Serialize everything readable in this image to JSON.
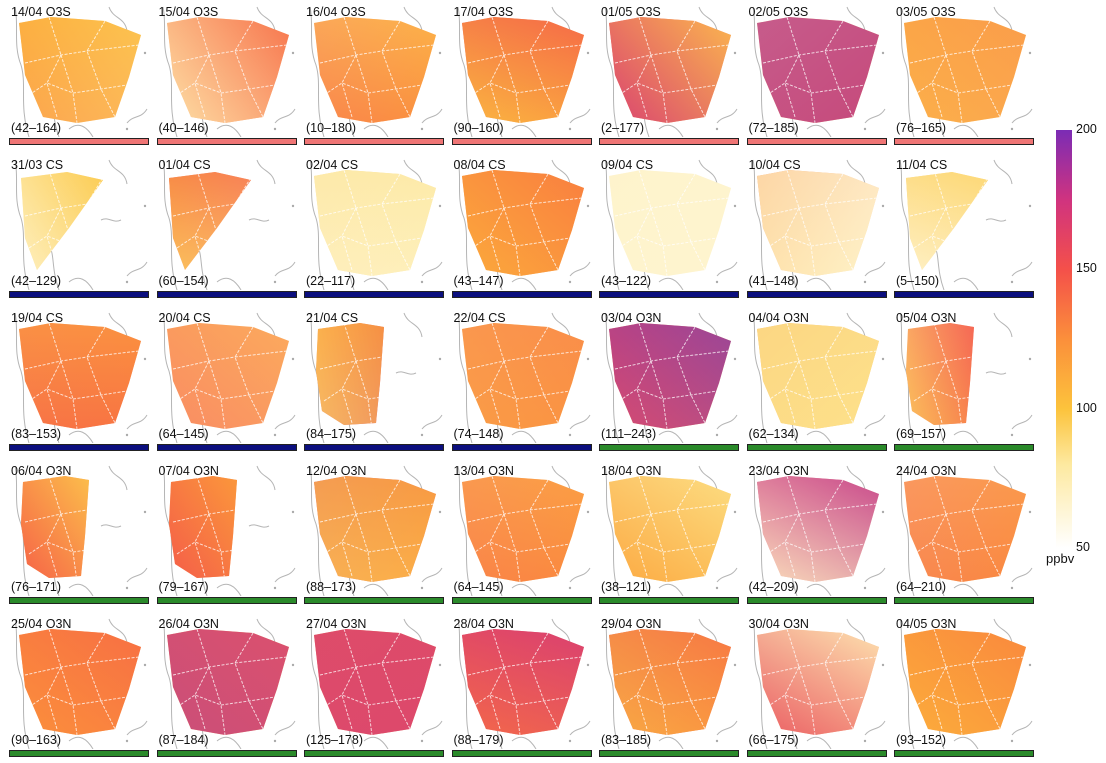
{
  "chart_data": {
    "type": "heatmap",
    "title": "",
    "colorbar": {
      "unit": "ppbv",
      "min": 50,
      "max": 200,
      "ticks": [
        "200",
        "150",
        "100",
        "50"
      ],
      "stops": [
        {
          "value": 50,
          "color": "#ffffff"
        },
        {
          "value": 80,
          "color": "#fde9a0"
        },
        {
          "value": 100,
          "color": "#fcc33c"
        },
        {
          "value": 125,
          "color": "#fb8f3b"
        },
        {
          "value": 150,
          "color": "#f4504a"
        },
        {
          "value": 175,
          "color": "#d0337f"
        },
        {
          "value": 200,
          "color": "#7b2cb5"
        }
      ]
    },
    "classes": {
      "O3S": "#ef7575",
      "CS": "#0b0f7e",
      "O3N": "#2a8a2a"
    },
    "panels": [
      {
        "label": "14/04 O3S",
        "range": "(42–164)",
        "class": "O3S"
      },
      {
        "label": "15/04 O3S",
        "range": "(40–146)",
        "class": "O3S"
      },
      {
        "label": "16/04 O3S",
        "range": "(10–180)",
        "class": "O3S"
      },
      {
        "label": "17/04 O3S",
        "range": "(90–160)",
        "class": "O3S"
      },
      {
        "label": "01/05 O3S",
        "range": "(2–177)",
        "class": "O3S"
      },
      {
        "label": "02/05 O3S",
        "range": "(72–185)",
        "class": "O3S"
      },
      {
        "label": "03/05 O3S",
        "range": "(76–165)",
        "class": "O3S"
      },
      {
        "label": "31/03 CS",
        "range": "(42–129)",
        "class": "CS"
      },
      {
        "label": "01/04 CS",
        "range": "(60–154)",
        "class": "CS"
      },
      {
        "label": "02/04 CS",
        "range": "(22–117)",
        "class": "CS"
      },
      {
        "label": "08/04 CS",
        "range": "(43–147)",
        "class": "CS"
      },
      {
        "label": "09/04 CS",
        "range": "(43–122)",
        "class": "CS"
      },
      {
        "label": "10/04 CS",
        "range": "(41–148)",
        "class": "CS"
      },
      {
        "label": "11/04 CS",
        "range": "(5–150)",
        "class": "CS"
      },
      {
        "label": "19/04 CS",
        "range": "(83–153)",
        "class": "CS"
      },
      {
        "label": "20/04 CS",
        "range": "(64–145)",
        "class": "CS"
      },
      {
        "label": "21/04 CS",
        "range": "(84–175)",
        "class": "CS"
      },
      {
        "label": "22/04 CS",
        "range": "(74–148)",
        "class": "CS"
      },
      {
        "label": "03/04 O3N",
        "range": "(111–243)",
        "class": "O3N"
      },
      {
        "label": "04/04 O3N",
        "range": "(62–134)",
        "class": "O3N"
      },
      {
        "label": "05/04 O3N",
        "range": "(69–157)",
        "class": "O3N"
      },
      {
        "label": "06/04 O3N",
        "range": "(76–171)",
        "class": "O3N"
      },
      {
        "label": "07/04 O3N",
        "range": "(79–167)",
        "class": "O3N"
      },
      {
        "label": "12/04 O3N",
        "range": "(88–173)",
        "class": "O3N"
      },
      {
        "label": "13/04 O3N",
        "range": "(64–145)",
        "class": "O3N"
      },
      {
        "label": "18/04 O3N",
        "range": "(38–121)",
        "class": "O3N"
      },
      {
        "label": "23/04 O3N",
        "range": "(42–209)",
        "class": "O3N"
      },
      {
        "label": "24/04 O3N",
        "range": "(64–210)",
        "class": "O3N"
      },
      {
        "label": "25/04 O3N",
        "range": "(90–163)",
        "class": "O3N"
      },
      {
        "label": "26/04 O3N",
        "range": "(87–184)",
        "class": "O3N"
      },
      {
        "label": "27/04 O3N",
        "range": "(125–178)",
        "class": "O3N"
      },
      {
        "label": "28/04 O3N",
        "range": "(88–179)",
        "class": "O3N"
      },
      {
        "label": "29/04 O3N",
        "range": "(83–185)",
        "class": "O3N"
      },
      {
        "label": "30/04 O3N",
        "range": "(66–175)",
        "class": "O3N"
      },
      {
        "label": "04/05 O3N",
        "range": "(93–152)",
        "class": "O3N"
      }
    ]
  }
}
